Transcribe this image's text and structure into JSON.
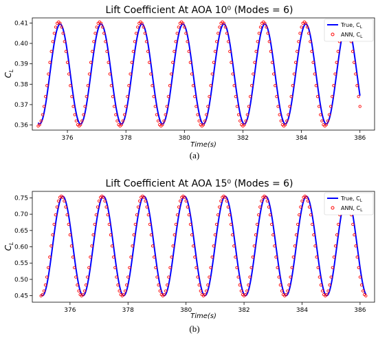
{
  "chart_data": [
    {
      "type": "line",
      "title": "Lift Coefficient At AOA 10⁰ (Modes = 6)",
      "xlabel": "Time(s)",
      "ylabel": "C_L",
      "caption": "(a)",
      "xlim": [
        374.8,
        386.5
      ],
      "ylim": [
        0.3575,
        0.4125
      ],
      "xticks": [
        376,
        378,
        380,
        382,
        384,
        386
      ],
      "yticks": [
        0.36,
        0.37,
        0.38,
        0.39,
        0.4,
        0.41
      ],
      "ytick_labels": [
        "0.36",
        "0.37",
        "0.38",
        "0.39",
        "0.40",
        "0.41"
      ],
      "grid": false,
      "legend_position": "top-right",
      "series": [
        {
          "name": "True, C_L",
          "style": "line",
          "color": "#0000ff",
          "x_range": [
            375.0,
            386.0
          ],
          "mean": 0.385,
          "amplitude": 0.0245,
          "period": 1.4,
          "first_peak_x": 375.75
        },
        {
          "name": "ANN, C_L",
          "style": "markers",
          "color": "#ff0000",
          "x_range": [
            375.0,
            386.0
          ],
          "mean": 0.385,
          "amplitude": 0.0255,
          "period": 1.4,
          "first_peak_x": 375.7
        }
      ]
    },
    {
      "type": "line",
      "title": "Lift Coefficient At AOA 15⁰ (Modes = 6)",
      "xlabel": "Time(s)",
      "ylabel": "C_L",
      "caption": "(b)",
      "xlim": [
        374.7,
        386.5
      ],
      "ylim": [
        0.43,
        0.77
      ],
      "xticks": [
        376,
        378,
        380,
        382,
        384,
        386
      ],
      "yticks": [
        0.45,
        0.5,
        0.55,
        0.6,
        0.65,
        0.7,
        0.75
      ],
      "ytick_labels": [
        "0.45",
        "0.50",
        "0.55",
        "0.60",
        "0.65",
        "0.70",
        "0.75"
      ],
      "grid": false,
      "legend_position": "top-right",
      "series": [
        {
          "name": "True, C_L",
          "style": "line",
          "color": "#0000ff",
          "x_range": [
            375.0,
            386.2
          ],
          "mean": 0.6025,
          "amplitude": 0.1525,
          "period": 1.4,
          "first_peak_x": 375.75
        },
        {
          "name": "ANN, C_L",
          "style": "markers",
          "color": "#ff0000",
          "x_range": [
            375.0,
            386.2
          ],
          "mean": 0.6025,
          "amplitude": 0.153,
          "period": 1.4,
          "first_peak_x": 375.7
        }
      ]
    }
  ]
}
